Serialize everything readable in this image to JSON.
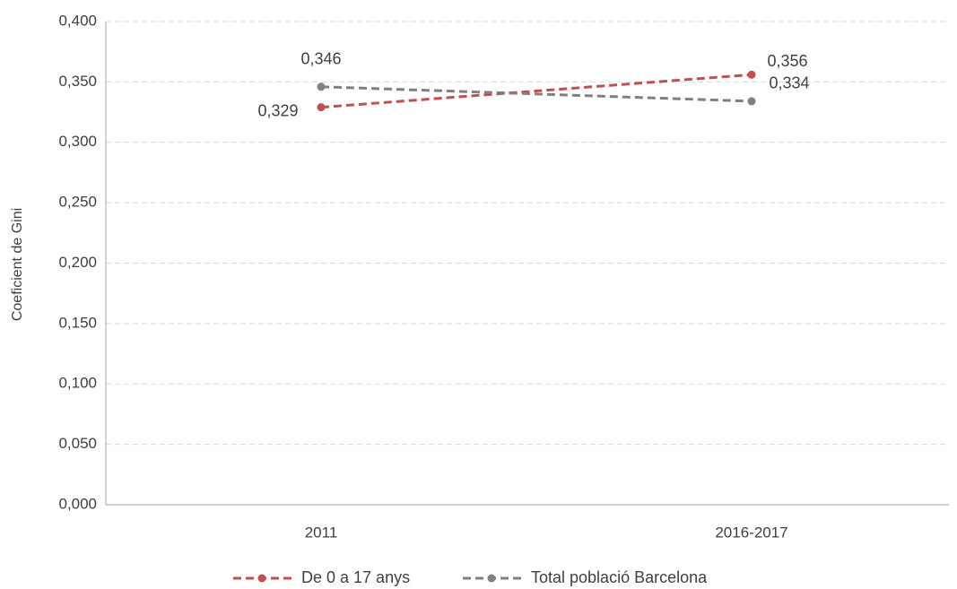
{
  "chart_data": {
    "type": "line",
    "y_label": "Coeficient de Gini",
    "categories": [
      "2011",
      "2016-2017"
    ],
    "series": [
      {
        "name": "De 0 a 17 anys",
        "color": "#c0504d",
        "values": [
          0.329,
          0.356
        ],
        "value_labels": [
          "0,329",
          "0,356"
        ]
      },
      {
        "name": "Total població Barcelona",
        "color": "#808080",
        "values": [
          0.346,
          0.334
        ],
        "value_labels": [
          "0,346",
          "0,334"
        ]
      }
    ],
    "ylim": [
      0,
      0.4
    ],
    "yticks": [
      {
        "value": 0,
        "label": "0,000"
      },
      {
        "value": 0.05,
        "label": "0,050"
      },
      {
        "value": 0.1,
        "label": "0,100"
      },
      {
        "value": 0.15,
        "label": "0,150"
      },
      {
        "value": 0.2,
        "label": "0,200"
      },
      {
        "value": 0.25,
        "label": "0,250"
      },
      {
        "value": 0.3,
        "label": "0,300"
      },
      {
        "value": 0.35,
        "label": "0,350"
      },
      {
        "value": 0.4,
        "label": "0,400"
      }
    ],
    "grid": true,
    "legend": "bottom"
  }
}
